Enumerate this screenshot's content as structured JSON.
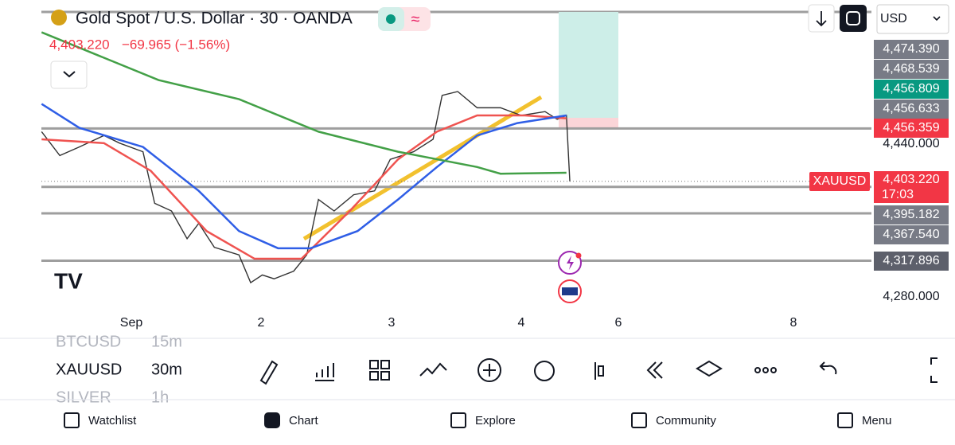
{
  "header": {
    "title": "Gold Spot / U.S. Dollar · 30 · OANDA",
    "price": "4,403.220",
    "change": "−69.965 (−1.56%)",
    "currency": "USD"
  },
  "chart_data": {
    "type": "line",
    "xlim": [
      -0.01,
      8.89
    ],
    "ylim": [
      4236.7,
      4590.8
    ],
    "xticks": [
      {
        "value": 1,
        "label": "Sep"
      },
      2,
      3,
      4,
      6,
      8
    ],
    "yticks": [
      {
        "value": 4280,
        "label": "4,280.000"
      },
      {
        "value": 4440,
        "label": "4,440.000"
      }
    ],
    "series": [
      {
        "color": "#333333",
        "x": [
          0.31,
          0.45,
          0.6,
          0.79,
          0.91,
          1.09,
          1.18,
          1.31,
          1.43,
          1.52,
          1.64,
          1.83,
          1.92,
          2.01,
          2.1,
          2.25,
          2.35,
          2.44,
          2.56,
          2.71,
          2.87,
          2.99,
          3.17,
          3.32,
          3.39,
          3.51,
          3.66,
          3.84,
          4.0,
          4.49,
          4.74,
          4.93,
          5.0
        ],
        "values": [
          4453,
          4428,
          4437,
          4449,
          4441,
          4432,
          4378,
          4370,
          4341,
          4357,
          4332,
          4324,
          4295,
          4303,
          4299,
          4307,
          4324,
          4382,
          4370,
          4387,
          4391,
          4424,
          4432,
          4445,
          4491,
          4495,
          4478,
          4478,
          4470,
          4474,
          4466,
          4470,
          4401
        ]
      },
      {
        "color": "#ef5350",
        "x": [
          0.31,
          0.79,
          1.15,
          1.58,
          1.95,
          2.31,
          2.68,
          3.05,
          3.35,
          3.66,
          4.08,
          4.93
        ],
        "values": [
          4445,
          4441,
          4412,
          4349,
          4320,
          4320,
          4370,
          4424,
          4453,
          4470,
          4470,
          4467
        ]
      },
      {
        "color": "#2f5ee6",
        "x": [
          0.31,
          0.6,
          1.09,
          1.52,
          1.83,
          2.13,
          2.38,
          2.74,
          3.05,
          3.35,
          3.66,
          3.97,
          4.93
        ],
        "values": [
          4482,
          4457,
          4437,
          4391,
          4349,
          4331,
          4331,
          4349,
          4382,
          4416,
          4449,
          4462,
          4470
        ]
      },
      {
        "color": "#43a047",
        "x": [
          0.31,
          1.21,
          1.83,
          2.44,
          3.05,
          3.66,
          3.84,
          4.93
        ],
        "values": [
          4557,
          4507,
          4487,
          4453,
          4432,
          4416,
          4409,
          4410
        ]
      }
    ],
    "price_tags": [
      {
        "value": 4474.39,
        "label": "4,474.390",
        "color": "#787b86"
      },
      {
        "value": 4468.539,
        "label": "4,468.539",
        "color": "#787b86"
      },
      {
        "value": 4456.809,
        "label": "4,456.809",
        "color": "#089981"
      },
      {
        "value": 4456.633,
        "label": "4,456.633",
        "color": "#787b86"
      },
      {
        "value": 4456.359,
        "label": "4,456.359",
        "color": "#f23645",
        "line": true
      },
      {
        "value": 4403.22,
        "label": "4,403.220",
        "color": "#f23645",
        "name": "XAUUSD",
        "timer": "17:03"
      },
      {
        "value": 4395.182,
        "label": "4,395.182",
        "color": "#787b86",
        "line": true
      },
      {
        "value": 4367.54,
        "label": "4,367.540",
        "color": "#787b86",
        "line": true
      },
      {
        "value": 4317.896,
        "label": "4,317.896",
        "color": "#5d606b",
        "line": true
      }
    ]
  },
  "symbols": [
    {
      "symbol": "BTCUSD",
      "interval": "15m"
    },
    {
      "symbol": "XAUUSD",
      "interval": "30m"
    },
    {
      "symbol": "SILVER",
      "interval": "1h"
    }
  ],
  "nav": [
    "Watchlist",
    "Chart",
    "Explore",
    "Community",
    "Menu"
  ]
}
